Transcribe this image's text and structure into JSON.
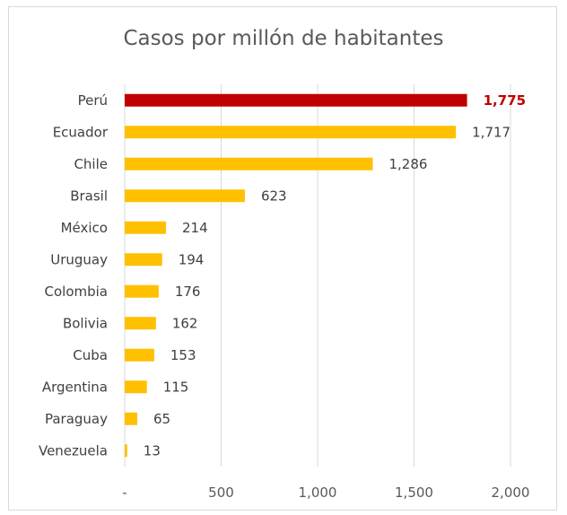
{
  "chart_data": {
    "type": "bar",
    "orientation": "horizontal",
    "title": "Casos por millón de habitantes",
    "categories": [
      "Perú",
      "Ecuador",
      "Chile",
      "Brasil",
      "México",
      "Uruguay",
      "Colombia",
      "Bolivia",
      "Cuba",
      "Argentina",
      "Paraguay",
      "Venezuela"
    ],
    "values": [
      1775,
      1717,
      1286,
      623,
      214,
      194,
      176,
      162,
      153,
      115,
      65,
      13
    ],
    "value_labels": [
      "1,775",
      "1,717",
      "1,286",
      "623",
      "214",
      "194",
      "176",
      "162",
      "153",
      "115",
      "65",
      "13"
    ],
    "highlight_index": 0,
    "xlim": [
      0,
      2000
    ],
    "xticks": [
      0,
      500,
      1000,
      1500,
      2000
    ],
    "xtick_labels": [
      "-",
      "500",
      "1,000",
      "1,500",
      "2,000"
    ],
    "grid": "vertical",
    "legend": "none",
    "colors": {
      "bar": "#ffc000",
      "highlight": "#c00000",
      "grid": "#d9d9d9",
      "text": "#404040"
    }
  }
}
